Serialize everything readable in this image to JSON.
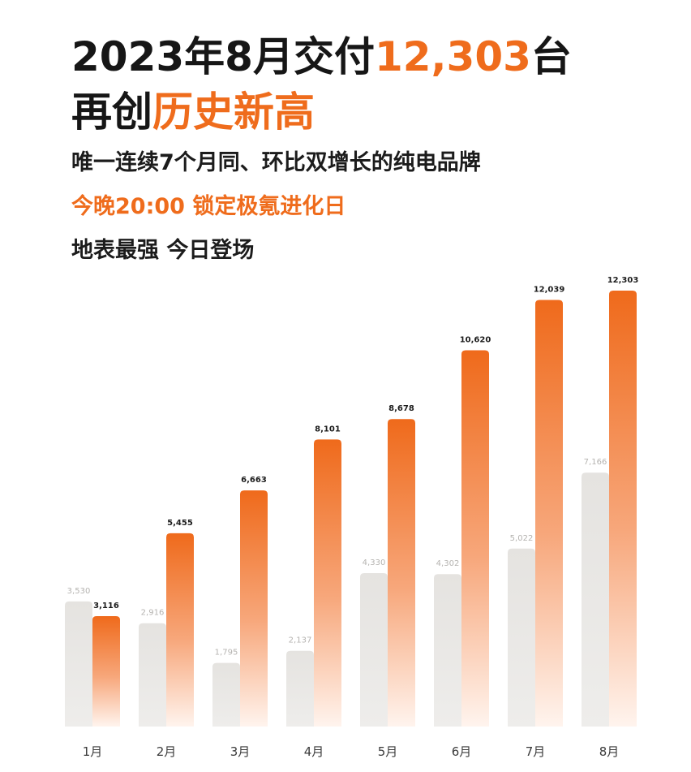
{
  "header": {
    "line1_part1": "2023年8月交付",
    "line1_highlight": "12,303",
    "line1_part2": "台",
    "line2_part1": "再创",
    "line2_highlight": "历史新高",
    "subtitle1": "唯一连续7个月同、环比双增长的纯电品牌",
    "subtitle2": "今晚20:00 锁定极氪进化日",
    "subtitle3": "地表最强 今日登场"
  },
  "colors": {
    "accent": "#ef6c1c",
    "gray_bar": "#e7e5e2"
  },
  "chart_data": {
    "type": "bar",
    "categories": [
      "1月",
      "2月",
      "3月",
      "4月",
      "5月",
      "6月",
      "7月",
      "8月"
    ],
    "series": [
      {
        "values": [
          3530,
          2916,
          1795,
          2137,
          4330,
          4302,
          5022,
          7166
        ],
        "labels": [
          "3,530",
          "2,916",
          "1,795",
          "2,137",
          "4,330",
          "4,302",
          "5,022",
          "7,166"
        ]
      },
      {
        "values": [
          3116,
          5455,
          6663,
          8101,
          8678,
          10620,
          12039,
          12303
        ],
        "labels": [
          "3,116",
          "5,455",
          "6,663",
          "8,101",
          "8,678",
          "10,620",
          "12,039",
          "12,303"
        ]
      }
    ],
    "title": "",
    "xlabel": "",
    "ylabel": "",
    "ylim": [
      0,
      12303
    ],
    "grid": false,
    "legend": "none"
  }
}
